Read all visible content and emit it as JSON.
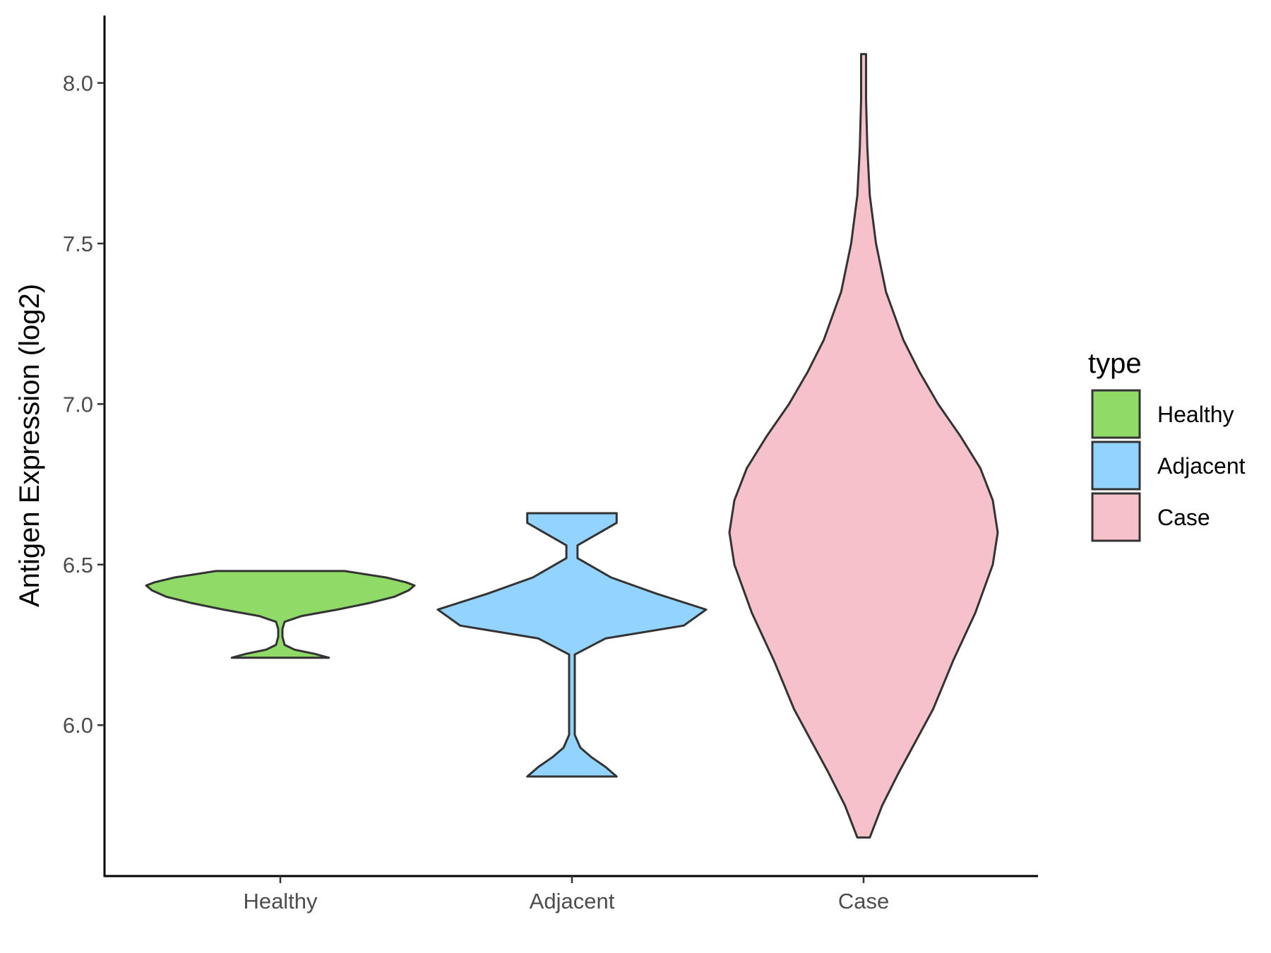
{
  "chart_data": {
    "type": "violin",
    "title": "",
    "xlabel": "",
    "ylabel": "Antigen Expression (log2)",
    "categories": [
      "Healthy",
      "Adjacent",
      "Case"
    ],
    "ylim": [
      5.53,
      8.21
    ],
    "yticks": [
      6.0,
      6.5,
      7.0,
      7.5,
      8.0
    ],
    "ytick_labels": [
      "6.0",
      "6.5",
      "7.0",
      "7.5",
      "8.0"
    ],
    "grid": false,
    "legend": {
      "title": "type",
      "position": "right",
      "entries": [
        "Healthy",
        "Adjacent",
        "Case"
      ]
    },
    "colors": {
      "Healthy": "#90DA68",
      "Adjacent": "#92D3FF",
      "Case": "#F7C1CB",
      "outline": "#333333"
    },
    "series": [
      {
        "name": "Healthy",
        "min": 6.21,
        "max": 6.48,
        "density": [
          [
            6.21,
            0.34
          ],
          [
            6.222,
            0.24
          ],
          [
            6.235,
            0.1
          ],
          [
            6.25,
            0.03
          ],
          [
            6.275,
            0.015
          ],
          [
            6.3,
            0.015
          ],
          [
            6.322,
            0.03
          ],
          [
            6.34,
            0.15
          ],
          [
            6.36,
            0.4
          ],
          [
            6.38,
            0.62
          ],
          [
            6.4,
            0.8
          ],
          [
            6.42,
            0.9
          ],
          [
            6.435,
            0.94
          ],
          [
            6.445,
            0.88
          ],
          [
            6.46,
            0.74
          ],
          [
            6.48,
            0.45
          ]
        ]
      },
      {
        "name": "Adjacent",
        "min": 5.84,
        "max": 6.66,
        "density": [
          [
            5.84,
            0.16
          ],
          [
            5.87,
            0.12
          ],
          [
            5.9,
            0.07
          ],
          [
            5.93,
            0.03
          ],
          [
            5.97,
            0.01
          ],
          [
            6.05,
            0.01
          ],
          [
            6.15,
            0.01
          ],
          [
            6.22,
            0.01
          ],
          [
            6.27,
            0.12
          ],
          [
            6.31,
            0.4
          ],
          [
            6.36,
            0.48
          ],
          [
            6.41,
            0.3
          ],
          [
            6.46,
            0.14
          ],
          [
            6.52,
            0.02
          ],
          [
            6.56,
            0.02
          ],
          [
            6.6,
            0.1
          ],
          [
            6.63,
            0.16
          ],
          [
            6.66,
            0.16
          ]
        ]
      },
      {
        "name": "Case",
        "min": 5.65,
        "max": 8.09,
        "density": [
          [
            5.65,
            0.005
          ],
          [
            5.75,
            0.015
          ],
          [
            5.85,
            0.028
          ],
          [
            5.95,
            0.042
          ],
          [
            6.05,
            0.056
          ],
          [
            6.2,
            0.072
          ],
          [
            6.35,
            0.09
          ],
          [
            6.5,
            0.104
          ],
          [
            6.6,
            0.108
          ],
          [
            6.7,
            0.104
          ],
          [
            6.8,
            0.094
          ],
          [
            6.9,
            0.078
          ],
          [
            7.0,
            0.06
          ],
          [
            7.1,
            0.045
          ],
          [
            7.2,
            0.032
          ],
          [
            7.35,
            0.018
          ],
          [
            7.5,
            0.01
          ],
          [
            7.65,
            0.005
          ],
          [
            7.8,
            0.003
          ],
          [
            7.95,
            0.002
          ],
          [
            8.09,
            0.002
          ]
        ]
      }
    ]
  }
}
